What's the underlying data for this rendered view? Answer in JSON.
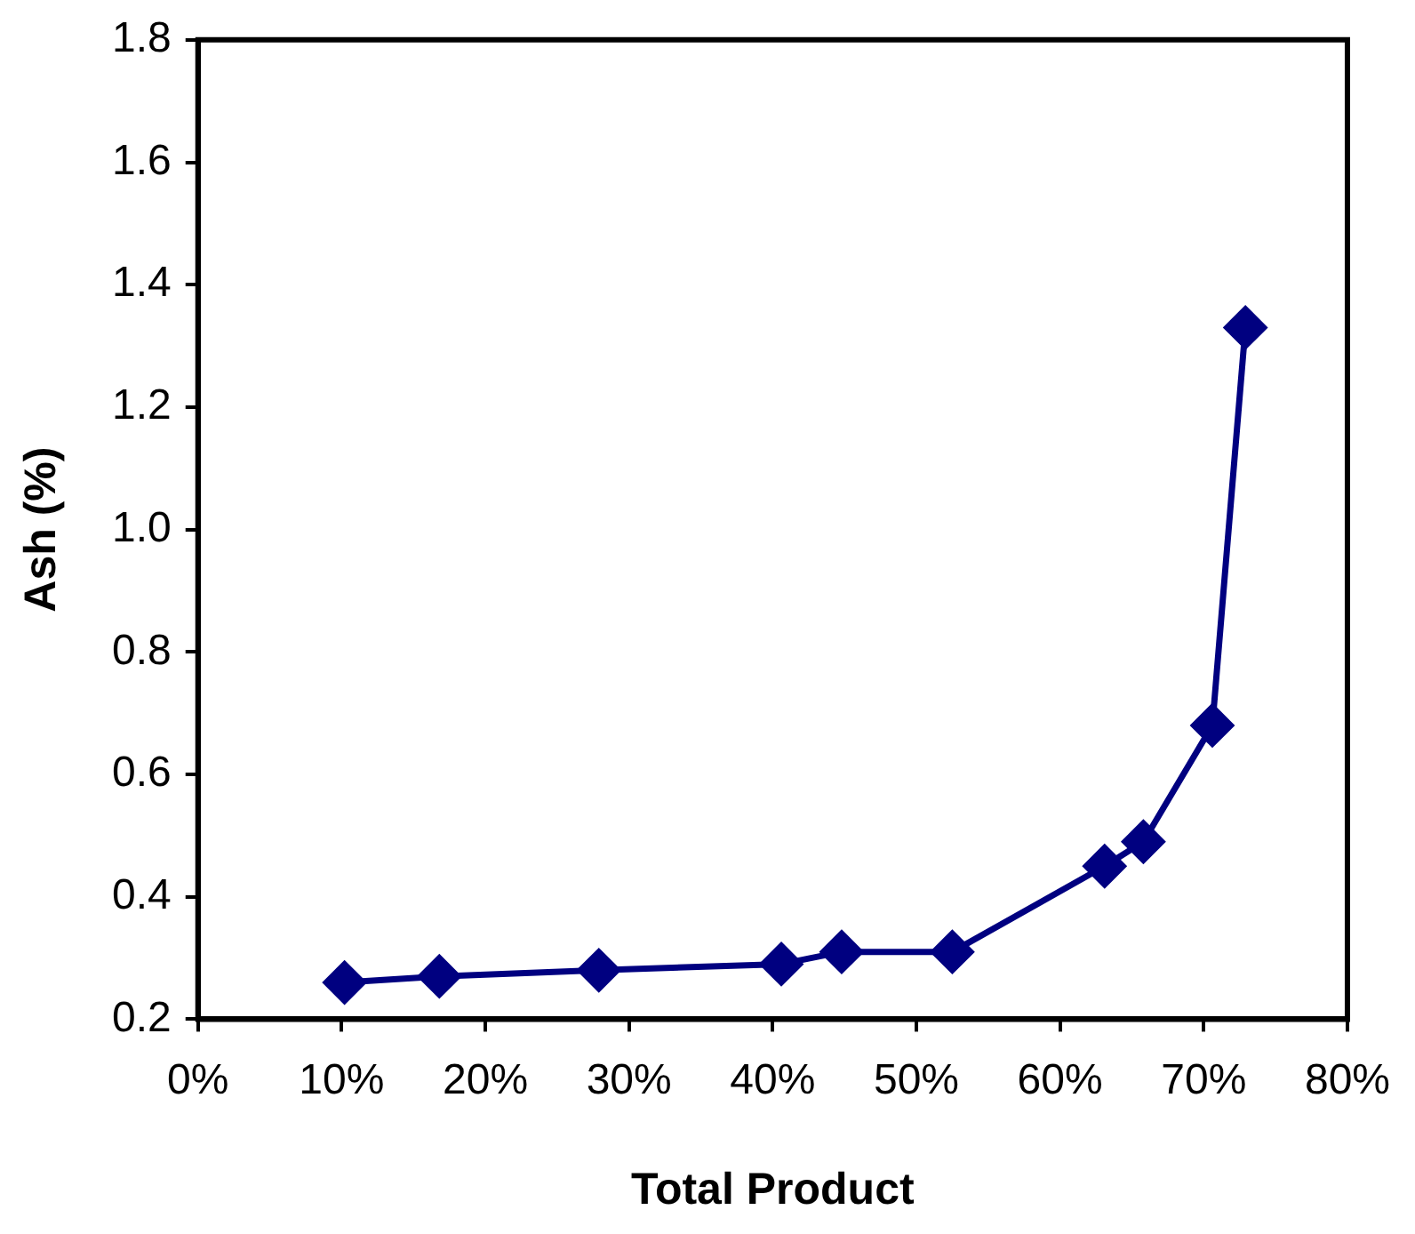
{
  "chart_data": {
    "type": "line",
    "xlabel": "Total Product",
    "ylabel": "Ash (%)",
    "x": [
      10.2,
      16.8,
      27.9,
      40.6,
      44.8,
      52.5,
      63.1,
      65.8,
      70.6,
      72.9
    ],
    "series": [
      {
        "color": "#000080",
        "values": [
          0.26,
          0.27,
          0.28,
          0.29,
          0.31,
          0.31,
          0.45,
          0.49,
          0.68,
          1.33
        ]
      }
    ],
    "xlim": [
      0,
      80
    ],
    "ylim": [
      0.2,
      1.8
    ],
    "xticks": [
      {
        "value": 0,
        "label": "0%"
      },
      {
        "value": 10,
        "label": "10%"
      },
      {
        "value": 20,
        "label": "20%"
      },
      {
        "value": 30,
        "label": "30%"
      },
      {
        "value": 40,
        "label": "40%"
      },
      {
        "value": 50,
        "label": "50%"
      },
      {
        "value": 60,
        "label": "60%"
      },
      {
        "value": 70,
        "label": "70%"
      },
      {
        "value": 80,
        "label": "80%"
      }
    ],
    "yticks": [
      {
        "value": 0.2,
        "label": "0.2"
      },
      {
        "value": 0.4,
        "label": "0.4"
      },
      {
        "value": 0.6,
        "label": "0.6"
      },
      {
        "value": 0.8,
        "label": "0.8"
      },
      {
        "value": 1.0,
        "label": "1.0"
      },
      {
        "value": 1.2,
        "label": "1.2"
      },
      {
        "value": 1.4,
        "label": "1.4"
      },
      {
        "value": 1.6,
        "label": "1.6"
      },
      {
        "value": 1.8,
        "label": "1.8"
      }
    ],
    "grid": false,
    "legend": false,
    "marker": "diamond",
    "line_style": "solid"
  }
}
